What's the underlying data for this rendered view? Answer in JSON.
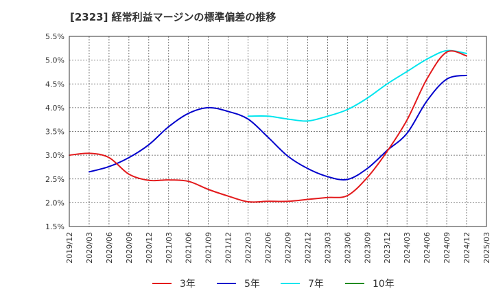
{
  "title": "[2323]  経常利益マージンの標準偏差の推移",
  "chart_data": {
    "type": "line",
    "title": "[2323]  経常利益マージンの標準偏差の推移",
    "xlabel": "",
    "ylabel": "",
    "x": [
      "2019/12",
      "2020/03",
      "2020/06",
      "2020/09",
      "2020/12",
      "2021/03",
      "2021/06",
      "2021/09",
      "2021/12",
      "2022/03",
      "2022/06",
      "2022/09",
      "2022/12",
      "2023/03",
      "2023/06",
      "2023/09",
      "2023/12",
      "2024/03",
      "2024/06",
      "2024/09",
      "2024/12"
    ],
    "x_ticks": [
      "2019/12",
      "2020/03",
      "2020/06",
      "2020/09",
      "2020/12",
      "2021/03",
      "2021/06",
      "2021/09",
      "2021/12",
      "2022/03",
      "2022/06",
      "2022/09",
      "2022/12",
      "2023/03",
      "2023/06",
      "2023/09",
      "2023/12",
      "2024/03",
      "2024/06",
      "2024/09",
      "2024/12",
      "2025/03"
    ],
    "y_ticks": [
      "1.5%",
      "2.0%",
      "2.5%",
      "3.0%",
      "3.5%",
      "4.0%",
      "4.5%",
      "5.0%",
      "5.5%"
    ],
    "ylim": [
      1.5,
      5.5
    ],
    "grid": true,
    "legend_position": "bottom",
    "series": [
      {
        "name": "3年",
        "color": "#e31a1c",
        "values": [
          3.0,
          3.04,
          2.95,
          2.6,
          2.47,
          2.48,
          2.45,
          2.28,
          2.14,
          2.02,
          2.03,
          2.03,
          2.07,
          2.11,
          2.15,
          2.53,
          3.08,
          3.74,
          4.6,
          5.17,
          5.09
        ]
      },
      {
        "name": "5年",
        "color": "#0000cc",
        "values": [
          null,
          2.65,
          2.76,
          2.95,
          3.22,
          3.6,
          3.88,
          4.0,
          3.92,
          3.76,
          3.38,
          2.98,
          2.72,
          2.55,
          2.49,
          2.72,
          3.1,
          3.46,
          4.14,
          4.6,
          4.68
        ]
      },
      {
        "name": "7年",
        "color": "#00e5ee",
        "values": [
          null,
          null,
          null,
          null,
          null,
          null,
          null,
          null,
          null,
          3.82,
          3.82,
          3.76,
          3.72,
          3.82,
          3.96,
          4.2,
          4.5,
          4.76,
          5.02,
          5.2,
          5.14
        ]
      },
      {
        "name": "10年",
        "color": "#228b22",
        "values": [
          null,
          null,
          null,
          null,
          null,
          null,
          null,
          null,
          null,
          null,
          null,
          null,
          null,
          null,
          null,
          null,
          null,
          null,
          null,
          null,
          null
        ]
      }
    ]
  }
}
